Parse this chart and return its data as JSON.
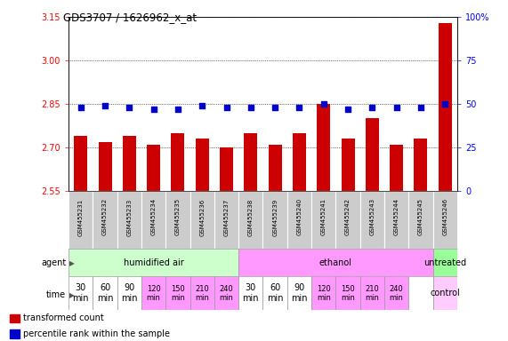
{
  "title": "GDS3707 / 1626962_x_at",
  "samples": [
    "GSM455231",
    "GSM455232",
    "GSM455233",
    "GSM455234",
    "GSM455235",
    "GSM455236",
    "GSM455237",
    "GSM455238",
    "GSM455239",
    "GSM455240",
    "GSM455241",
    "GSM455242",
    "GSM455243",
    "GSM455244",
    "GSM455245",
    "GSM455246"
  ],
  "bar_values": [
    2.74,
    2.72,
    2.74,
    2.71,
    2.75,
    2.73,
    2.7,
    2.75,
    2.71,
    2.75,
    2.85,
    2.73,
    2.8,
    2.71,
    2.73,
    3.13
  ],
  "percentile_values": [
    48,
    49,
    48,
    47,
    47,
    49,
    48,
    48,
    48,
    48,
    50,
    47,
    48,
    48,
    48,
    50
  ],
  "ylim_left": [
    2.55,
    3.15
  ],
  "yticks_left": [
    2.55,
    2.7,
    2.85,
    3.0,
    3.15
  ],
  "yticks_right": [
    0,
    25,
    50,
    75,
    100
  ],
  "bar_color": "#cc0000",
  "dot_color": "#0000cc",
  "agent_groups": [
    {
      "label": "humidified air",
      "start": 0,
      "end": 7,
      "color": "#ccffcc"
    },
    {
      "label": "ethanol",
      "start": 7,
      "end": 15,
      "color": "#ff99ff"
    },
    {
      "label": "untreated",
      "start": 15,
      "end": 16,
      "color": "#99ff99"
    }
  ],
  "time_labels": [
    "30\nmin",
    "60\nmin",
    "90\nmin",
    "120\nmin",
    "150\nmin",
    "210\nmin",
    "240\nmin",
    "30\nmin",
    "60\nmin",
    "90\nmin",
    "120\nmin",
    "150\nmin",
    "210\nmin",
    "240\nmin",
    "",
    "control"
  ],
  "time_colors": [
    "#ffffff",
    "#ffffff",
    "#ffffff",
    "#ff99ff",
    "#ff99ff",
    "#ff99ff",
    "#ff99ff",
    "#ffffff",
    "#ffffff",
    "#ffffff",
    "#ff99ff",
    "#ff99ff",
    "#ff99ff",
    "#ff99ff",
    "#ffffff",
    "#ffccff"
  ],
  "time_fontsizes": [
    7,
    7,
    7,
    6,
    6,
    6,
    6,
    7,
    7,
    7,
    6,
    6,
    6,
    6,
    7,
    7
  ],
  "legend_bar_label": "transformed count",
  "legend_dot_label": "percentile rank within the sample",
  "bar_width": 0.55,
  "background_color": "#ffffff",
  "sample_cell_color": "#cccccc",
  "sample_cell_border": "#ffffff"
}
